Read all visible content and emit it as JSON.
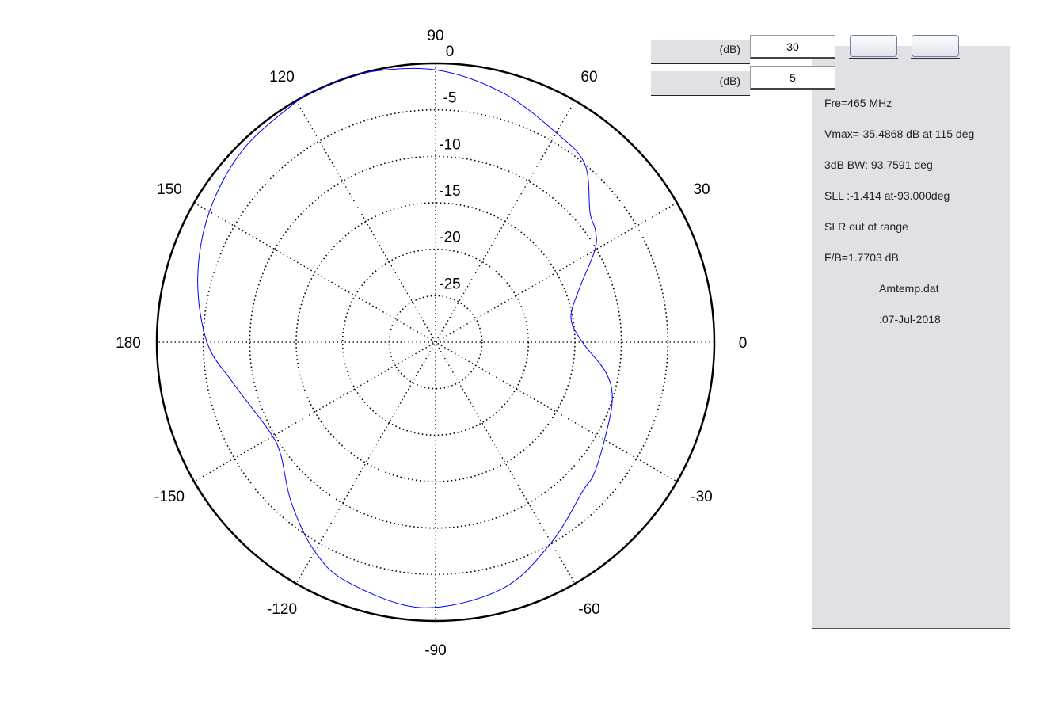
{
  "chart_data": {
    "type": "polar-line",
    "angle_ticks": [
      0,
      30,
      60,
      90,
      120,
      150,
      180,
      -150,
      -120,
      -90,
      -60,
      -30
    ],
    "radial_ticks": [
      0,
      -5,
      -10,
      -15,
      -20,
      -25
    ],
    "rlim": [
      -30,
      0
    ],
    "grid": true,
    "series_color": "#0000ff",
    "series": [
      {
        "angles_deg": [
          0,
          10,
          20,
          30,
          35,
          40,
          50,
          60,
          75,
          90,
          105,
          115,
          120,
          135,
          150,
          165,
          180,
          191,
          208,
          216,
          228,
          240,
          250,
          267,
          285,
          300,
          315,
          320,
          330,
          342,
          350
        ],
        "values_db": [
          -14.2,
          -15.2,
          -13.6,
          -10.2,
          -9.0,
          -8.3,
          -5.0,
          -4.0,
          -2.2,
          -0.7,
          0,
          0,
          -0.1,
          -0.7,
          -1.9,
          -3.5,
          -5.4,
          -7.7,
          -9.7,
          -9.4,
          -6.8,
          -4.0,
          -2.5,
          -1.4,
          -2.5,
          -5.1,
          -7.5,
          -7.8,
          -9.0,
          -10.0,
          -11.4
        ]
      }
    ]
  },
  "controls": {
    "range_unit": "(dB)",
    "range_value": "30",
    "step_unit": "(dB)",
    "step_value": "5"
  },
  "info": {
    "freq": "Fre=465 MHz",
    "vmax": "Vmax=-35.4868 dB at 115 deg",
    "bw": "3dB BW: 93.7591 deg",
    "sll": "SLL :-1.414  at-93.000deg",
    "slr": "SLR  out of range",
    "fb": "F/B=1.7703 dB",
    "file": "Amtemp.dat",
    "date": ":07-Jul-2018"
  }
}
